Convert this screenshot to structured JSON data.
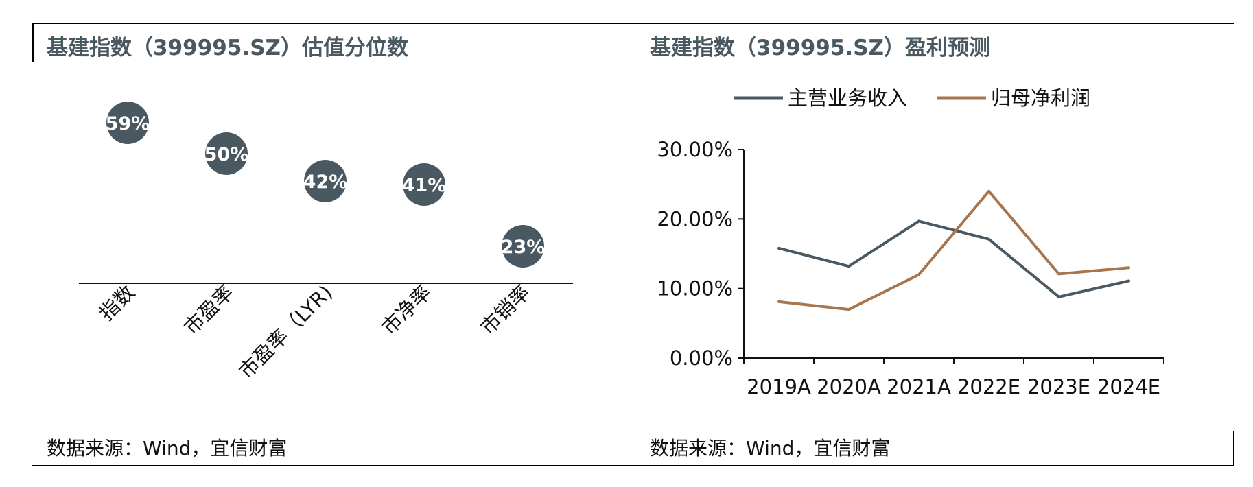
{
  "left_panel": {
    "title": "基建指数（399995.SZ）估值分位数",
    "source": "数据来源：Wind，宜信财富"
  },
  "right_panel": {
    "title": "基建指数（399995.SZ）盈利预测",
    "source": "数据来源：Wind，宜信财富"
  },
  "chart_data": [
    {
      "type": "scatter",
      "title": "基建指数（399995.SZ）估值分位数",
      "categories": [
        "指数",
        "市盈率",
        "市盈率（LYR)",
        "市净率",
        "市销率"
      ],
      "values": [
        59,
        50,
        42,
        41,
        23
      ],
      "data_labels": [
        "59%",
        "50%",
        "42%",
        "41%",
        "23%"
      ],
      "marker_color": "#4a5961",
      "y_axis_visible": false,
      "grid": false
    },
    {
      "type": "line",
      "title": "基建指数（399995.SZ）盈利预测",
      "categories": [
        "2019A",
        "2020A",
        "2021A",
        "2022E",
        "2023E",
        "2024E"
      ],
      "series": [
        {
          "name": "主营业务收入",
          "color": "#4a5961",
          "values": [
            15.8,
            13.2,
            19.7,
            17.1,
            8.8,
            11.1
          ]
        },
        {
          "name": "归母净利润",
          "color": "#a8764e",
          "values": [
            8.1,
            7.0,
            12.0,
            24.0,
            12.1,
            13.0
          ]
        }
      ],
      "ylim": [
        0,
        30
      ],
      "yticks": [
        "0.00%",
        "10.00%",
        "20.00%",
        "30.00%"
      ],
      "legend": "top",
      "grid": false
    }
  ]
}
